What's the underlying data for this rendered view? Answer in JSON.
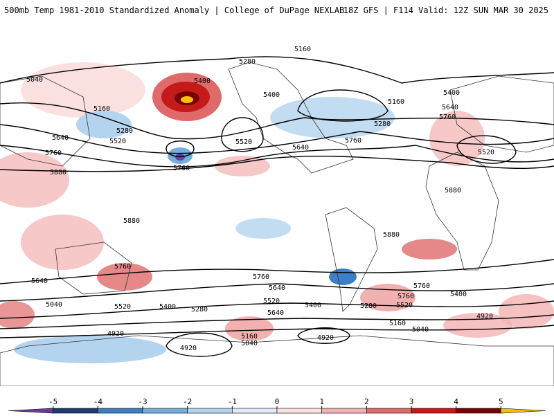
{
  "header": {
    "title": "500mb Temp 1981-2010 Standardized Anomaly | College of DuPage NEXLAB",
    "run_info": "18Z GFS | F114 Valid: 12Z SUN MAR 30 2025"
  },
  "contour_labels": [
    "5160",
    "5280",
    "5400",
    "5040",
    "5160",
    "5280",
    "5520",
    "5640",
    "5760",
    "5880",
    "5760",
    "5400",
    "5280",
    "5520",
    "5640",
    "5760",
    "5160",
    "5400",
    "5640",
    "5760",
    "5520",
    "5880",
    "5880",
    "5880",
    "5760",
    "5760",
    "5640",
    "5040",
    "5520",
    "5400",
    "5280",
    "5520",
    "5640",
    "5760",
    "5400",
    "5520",
    "5280",
    "5160",
    "5040",
    "4920",
    "4920",
    "5160",
    "5040",
    "4920",
    "5640",
    "5400",
    "5760",
    "4920"
  ],
  "colorbar": {
    "ticks": [
      "-5",
      "-4",
      "-3",
      "-2",
      "-1",
      "0",
      "1",
      "2",
      "3",
      "4",
      "5"
    ],
    "colors": [
      "#6a3d9a",
      "#1f3b73",
      "#3c7fc4",
      "#74aee0",
      "#b3d3ef",
      "#dfeaf6",
      "#fbe0e0",
      "#f2b1b1",
      "#e06a6a",
      "#c41a1a",
      "#7a0000",
      "#f5c400"
    ]
  }
}
